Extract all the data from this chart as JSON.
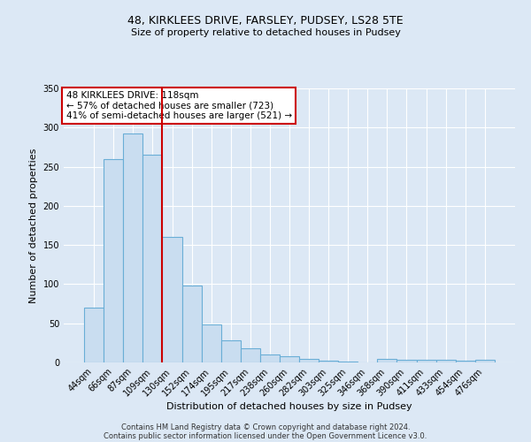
{
  "title1": "48, KIRKLEES DRIVE, FARSLEY, PUDSEY, LS28 5TE",
  "title2": "Size of property relative to detached houses in Pudsey",
  "xlabel": "Distribution of detached houses by size in Pudsey",
  "ylabel": "Number of detached properties",
  "bar_labels": [
    "44sqm",
    "66sqm",
    "87sqm",
    "109sqm",
    "130sqm",
    "152sqm",
    "174sqm",
    "195sqm",
    "217sqm",
    "238sqm",
    "260sqm",
    "282sqm",
    "303sqm",
    "325sqm",
    "346sqm",
    "368sqm",
    "390sqm",
    "411sqm",
    "433sqm",
    "454sqm",
    "476sqm"
  ],
  "bar_values": [
    70,
    260,
    292,
    265,
    160,
    98,
    48,
    28,
    18,
    10,
    8,
    5,
    2,
    1,
    0,
    4,
    3,
    3,
    3,
    2,
    3
  ],
  "bar_color": "#c9ddf0",
  "bar_edge_color": "#6aaed6",
  "ylim": [
    0,
    350
  ],
  "yticks": [
    0,
    50,
    100,
    150,
    200,
    250,
    300,
    350
  ],
  "vline_index": 3,
  "vline_color": "#cc0000",
  "annotation_text": "48 KIRKLEES DRIVE: 118sqm\n← 57% of detached houses are smaller (723)\n41% of semi-detached houses are larger (521) →",
  "annotation_box_color": "#ffffff",
  "annotation_box_edgecolor": "#cc0000",
  "footer1": "Contains HM Land Registry data © Crown copyright and database right 2024.",
  "footer2": "Contains public sector information licensed under the Open Government Licence v3.0.",
  "background_color": "#dce8f5",
  "plot_background": "#dce8f5",
  "grid_color": "#ffffff",
  "title1_fontsize": 9,
  "title2_fontsize": 8,
  "ylabel_fontsize": 8,
  "xlabel_fontsize": 8,
  "tick_fontsize": 7,
  "footer_fontsize": 6
}
